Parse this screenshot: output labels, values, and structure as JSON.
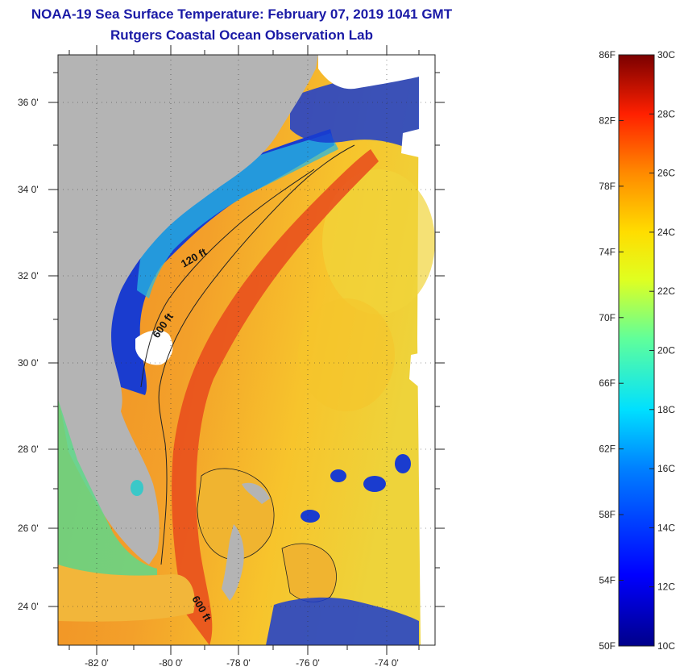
{
  "header": {
    "title": "NOAA-19 Sea Surface Temperature:  February 07, 2019 1041 GMT",
    "subtitle": "Rutgers Coastal Ocean Observation Lab"
  },
  "map": {
    "lat_ticks": [
      "36 0'",
      "34 0'",
      "32 0'",
      "30 0'",
      "28 0'",
      "26 0'",
      "24 0'"
    ],
    "lon_ticks": [
      "-82 0'",
      "-80 0'",
      "-78 0'",
      "-76 0'",
      "-74 0'"
    ],
    "contour_labels": [
      "120 ft",
      "600 ft",
      "600 ft"
    ],
    "colors": {
      "land": "#b4b4b4",
      "cloud": "#ffffff",
      "cold_shelf": "#1a3ccf",
      "mid_shelf": "#28c8e6",
      "warm_ocean": "#f07a1e",
      "gulf_stream": "#e8401a",
      "sargasso": "#f5c628"
    }
  },
  "colorbar": {
    "fahrenheit_labels": [
      "86F",
      "82F",
      "78F",
      "74F",
      "70F",
      "66F",
      "62F",
      "58F",
      "54F",
      "50F"
    ],
    "celsius_labels": [
      "30C",
      "28C",
      "26C",
      "24C",
      "22C",
      "20C",
      "18C",
      "16C",
      "14C",
      "12C",
      "10C"
    ],
    "range_f": [
      50,
      86
    ],
    "range_c": [
      10,
      30
    ]
  }
}
